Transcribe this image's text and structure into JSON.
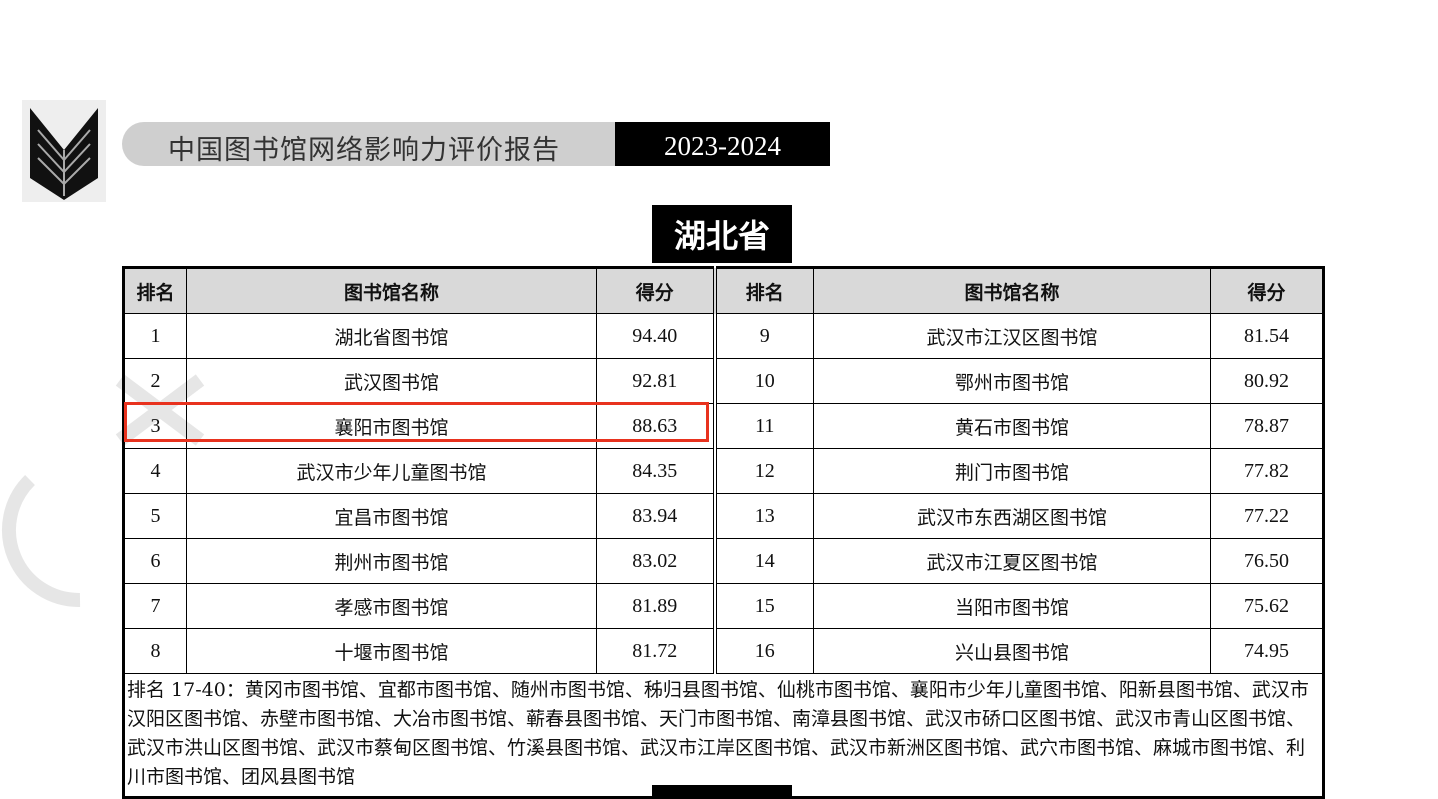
{
  "header": {
    "report_title": "中国图书馆网络影响力评价报告",
    "year": "2023-2024",
    "logo": "book-logo"
  },
  "section": {
    "province": "湖北省"
  },
  "table": {
    "columns": [
      "排名",
      "图书馆名称",
      "得分"
    ],
    "left": [
      {
        "rank": "1",
        "name": "湖北省图书馆",
        "score": "94.40"
      },
      {
        "rank": "2",
        "name": "武汉图书馆",
        "score": "92.81"
      },
      {
        "rank": "3",
        "name": "襄阳市图书馆",
        "score": "88.63",
        "highlighted": true
      },
      {
        "rank": "4",
        "name": "武汉市少年儿童图书馆",
        "score": "84.35"
      },
      {
        "rank": "5",
        "name": "宜昌市图书馆",
        "score": "83.94"
      },
      {
        "rank": "6",
        "name": "荆州市图书馆",
        "score": "83.02"
      },
      {
        "rank": "7",
        "name": "孝感市图书馆",
        "score": "81.89"
      },
      {
        "rank": "8",
        "name": "十堰市图书馆",
        "score": "81.72"
      }
    ],
    "right": [
      {
        "rank": "9",
        "name": "武汉市江汉区图书馆",
        "score": "81.54"
      },
      {
        "rank": "10",
        "name": "鄂州市图书馆",
        "score": "80.92"
      },
      {
        "rank": "11",
        "name": "黄石市图书馆",
        "score": "78.87"
      },
      {
        "rank": "12",
        "name": "荆门市图书馆",
        "score": "77.82"
      },
      {
        "rank": "13",
        "name": "武汉市东西湖区图书馆",
        "score": "77.22"
      },
      {
        "rank": "14",
        "name": "武汉市江夏区图书馆",
        "score": "76.50"
      },
      {
        "rank": "15",
        "name": "当阳市图书馆",
        "score": "75.62"
      },
      {
        "rank": "16",
        "name": "兴山县图书馆",
        "score": "74.95"
      }
    ],
    "notes": "排名 17-40：黄冈市图书馆、宜都市图书馆、随州市图书馆、秭归县图书馆、仙桃市图书馆、襄阳市少年儿童图书馆、阳新县图书馆、武汉市汉阳区图书馆、赤壁市图书馆、大冶市图书馆、蕲春县图书馆、天门市图书馆、南漳县图书馆、武汉市硚口区图书馆、武汉市青山区图书馆、武汉市洪山区图书馆、武汉市蔡甸区图书馆、竹溪县图书馆、武汉市江岸区图书馆、武汉市新洲区图书馆、武穴市图书馆、麻城市图书馆、利川市图书馆、团风县图书馆"
  },
  "colors": {
    "highlight": "#e8321e",
    "header_bg": "#d9d9d9"
  }
}
